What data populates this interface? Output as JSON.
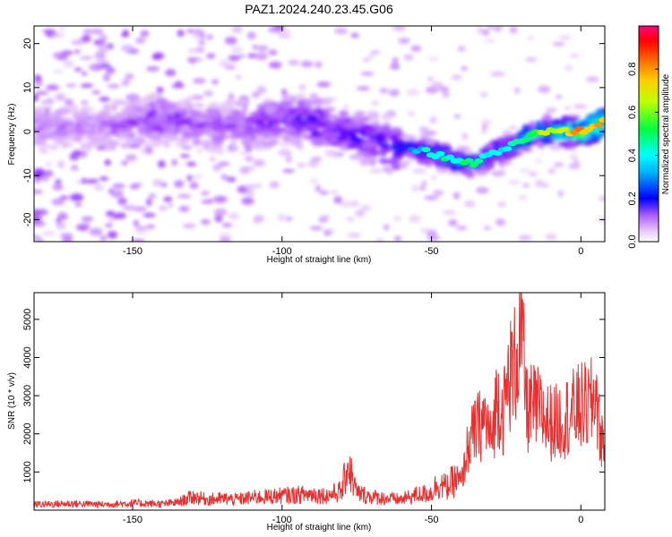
{
  "figure_title": "PAZ1.2024.240.23.45.G06",
  "chart_data": [
    {
      "type": "heatmap",
      "xlabel": "Height of straight line (km)",
      "ylabel": "Frequency (Hz)",
      "xlim": [
        -183,
        8
      ],
      "ylim": [
        -25,
        24
      ],
      "xticks": [
        -150,
        -100,
        -50,
        0
      ],
      "xtick_labels": [
        "-150",
        "-100",
        "-50",
        "0"
      ],
      "yticks": [
        -20,
        -10,
        0,
        10,
        20
      ],
      "ytick_labels": [
        "-20",
        "-10",
        "0",
        "10",
        "20"
      ],
      "colorbar": {
        "label": "Normalized spectral amplitude",
        "range": [
          0,
          1
        ],
        "ticks": [
          0.0,
          0.2,
          0.4,
          0.6,
          0.8
        ],
        "tick_labels": [
          "0.0",
          "0.2",
          "0.4",
          "0.6",
          "0.8"
        ],
        "colors": [
          "#ffffff",
          "#e8c8f8",
          "#8a00ff",
          "#0000ff",
          "#00ffff",
          "#00ff00",
          "#ffff00",
          "#ff8000",
          "#ff0000",
          "#ff0080"
        ]
      },
      "ridge": {
        "x": [
          -183,
          -160,
          -150,
          -140,
          -130,
          -120,
          -110,
          -100,
          -90,
          -80,
          -70,
          -60,
          -55,
          -50,
          -45,
          -40,
          -35,
          -30,
          -25,
          -20,
          -15,
          -10,
          -5,
          0,
          5,
          8
        ],
        "y": [
          1,
          1,
          2,
          3,
          2,
          1,
          1,
          3,
          2,
          0,
          -2,
          -4,
          -4,
          -5,
          -6,
          -7,
          -7,
          -5,
          -4,
          -2,
          0,
          0,
          0,
          0,
          1,
          3
        ],
        "amplitude": [
          0.15,
          0.15,
          0.2,
          0.25,
          0.22,
          0.2,
          0.22,
          0.28,
          0.3,
          0.3,
          0.3,
          0.32,
          0.38,
          0.45,
          0.48,
          0.5,
          0.48,
          0.42,
          0.42,
          0.5,
          0.6,
          0.65,
          0.72,
          0.85,
          0.9,
          0.7
        ]
      }
    },
    {
      "type": "line",
      "xlabel": "Height of straight line (km)",
      "ylabel": "SNR (10 * v/v)",
      "xlim": [
        -183,
        8
      ],
      "ylim": [
        0,
        5700
      ],
      "xticks": [
        -150,
        -100,
        -50,
        0
      ],
      "xtick_labels": [
        "-150",
        "-100",
        "-50",
        "0"
      ],
      "yticks": [
        1000,
        2000,
        3000,
        4000,
        5000
      ],
      "ytick_labels": [
        "1000",
        "2000",
        "3000",
        "4000",
        "5000"
      ],
      "line_color": "#e83030",
      "x": [
        -183,
        -170,
        -160,
        -150,
        -140,
        -135,
        -130,
        -125,
        -120,
        -115,
        -110,
        -105,
        -100,
        -95,
        -90,
        -85,
        -80,
        -78,
        -75,
        -70,
        -65,
        -60,
        -55,
        -50,
        -48,
        -45,
        -42,
        -40,
        -38,
        -36,
        -34,
        -32,
        -30,
        -28,
        -26,
        -24,
        -22,
        -20,
        -18,
        -16,
        -14,
        -12,
        -10,
        -8,
        -6,
        -4,
        -2,
        0,
        2,
        4,
        5,
        6,
        8
      ],
      "y": [
        150,
        170,
        150,
        180,
        160,
        200,
        350,
        280,
        300,
        280,
        330,
        350,
        380,
        400,
        420,
        380,
        500,
        1200,
        450,
        350,
        300,
        280,
        400,
        450,
        700,
        600,
        800,
        700,
        1600,
        2000,
        2200,
        2400,
        1800,
        3000,
        2500,
        3500,
        3800,
        4800,
        2600,
        2700,
        2600,
        2400,
        2300,
        2300,
        2400,
        2500,
        2600,
        2700,
        2700,
        2800,
        3300,
        2200,
        1600
      ]
    }
  ]
}
